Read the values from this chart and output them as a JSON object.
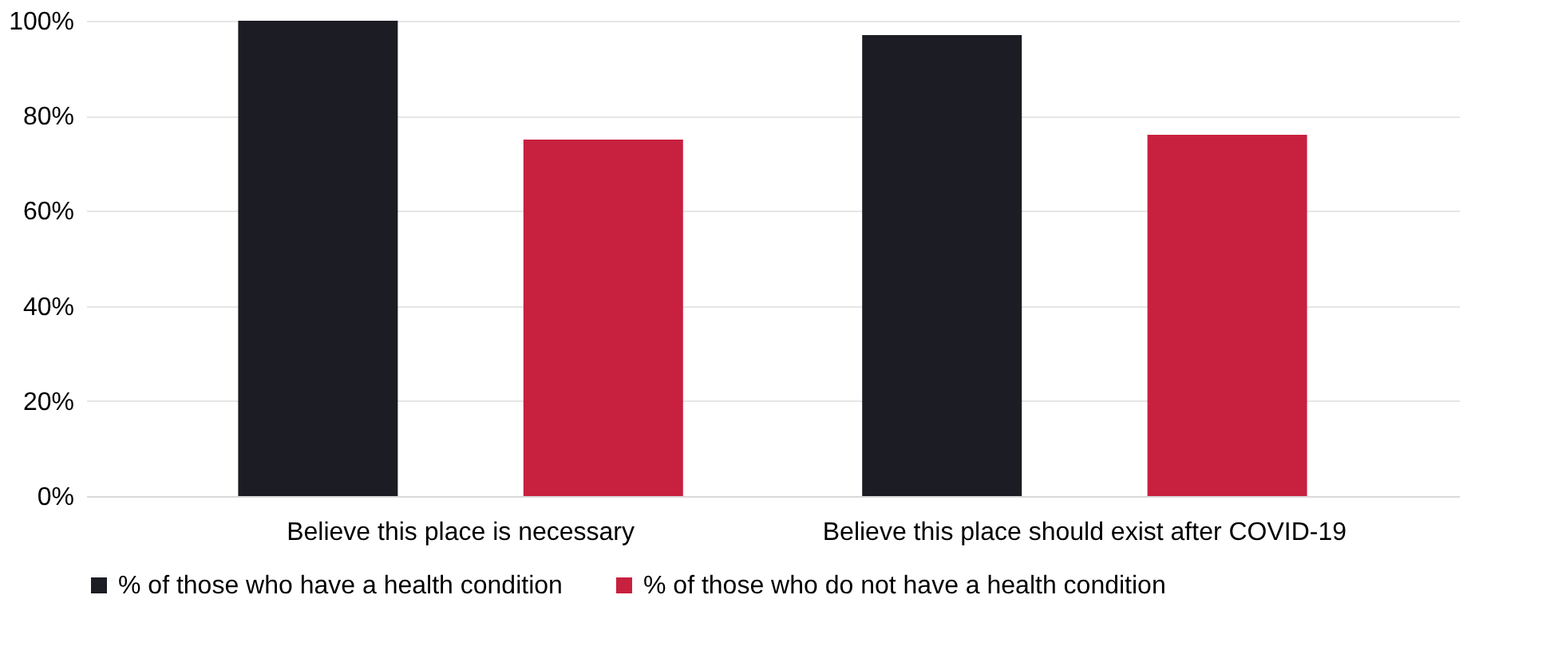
{
  "chart_data": {
    "type": "bar",
    "categories": [
      "Believe this place is necessary",
      "Believe this place should exist after COVID-19"
    ],
    "series": [
      {
        "name": "% of those who have a health condition",
        "color": "#1c1c24",
        "values": [
          100,
          97
        ]
      },
      {
        "name": "% of those who do not have a health condition",
        "color": "#c8203f",
        "values": [
          75,
          76
        ]
      }
    ],
    "ylim": [
      0,
      100
    ],
    "yticks": [
      {
        "value": 0,
        "label": "0%"
      },
      {
        "value": 20,
        "label": "20%"
      },
      {
        "value": 40,
        "label": "40%"
      },
      {
        "value": 60,
        "label": "60%"
      },
      {
        "value": 80,
        "label": "80%"
      },
      {
        "value": 100,
        "label": "100%"
      }
    ],
    "grid": "y",
    "legend": "bottom"
  }
}
